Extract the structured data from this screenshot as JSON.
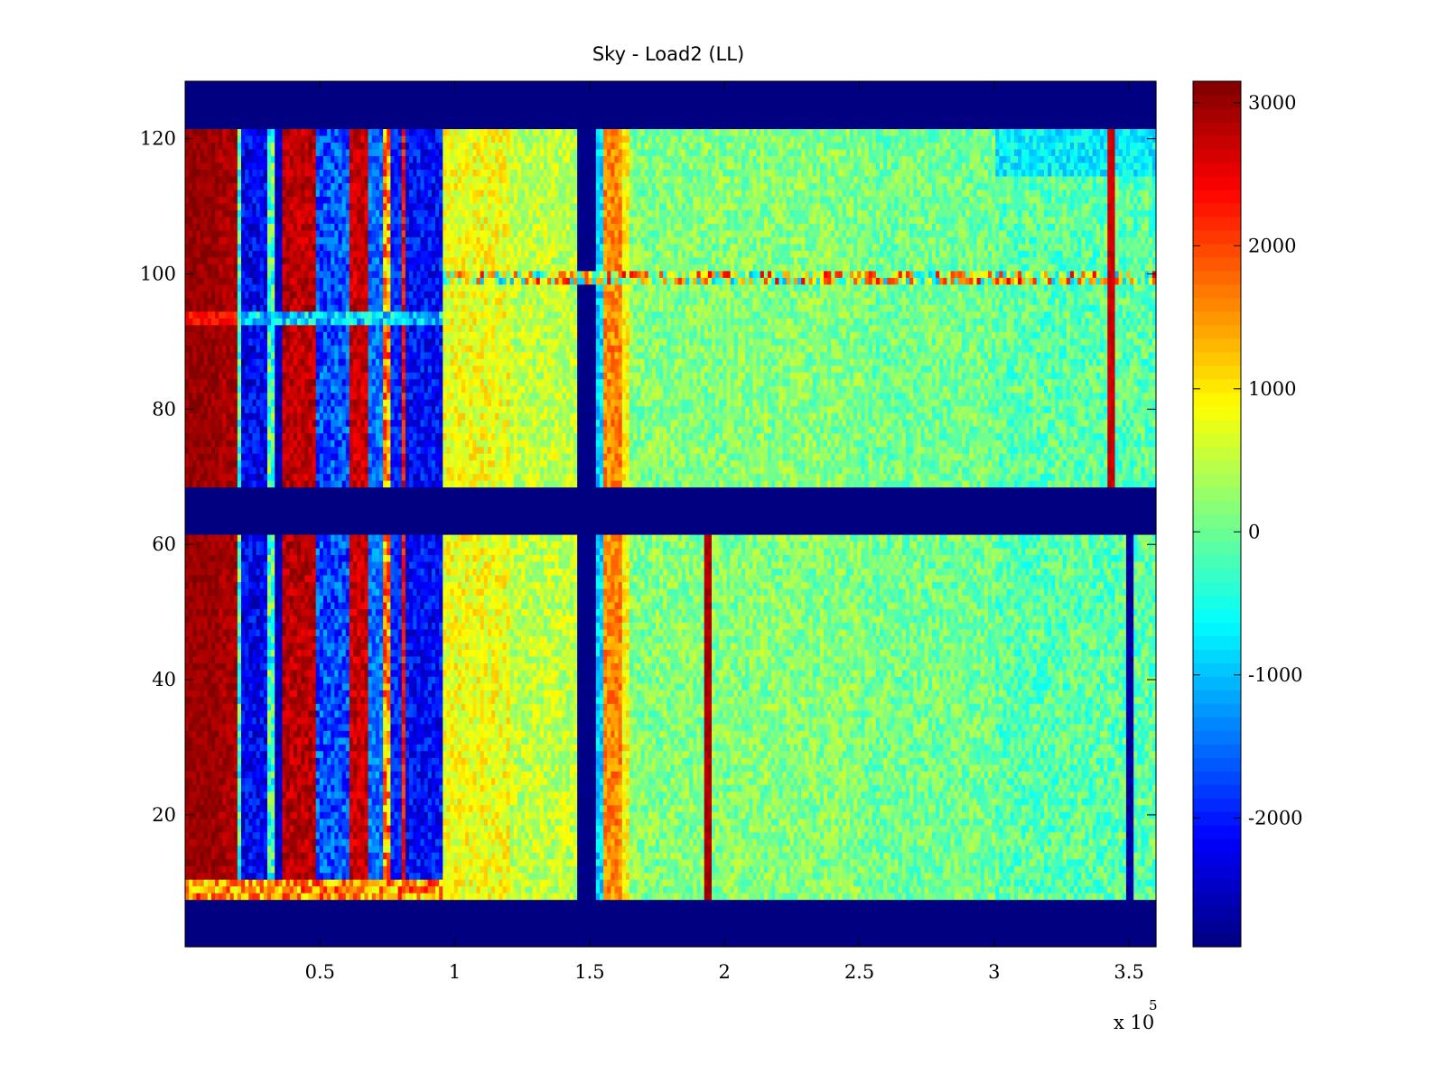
{
  "chart_data": {
    "type": "heatmap",
    "title": "Sky - Load2 (LL)",
    "xlabel": "",
    "ylabel": "",
    "x_range": [
      0,
      360000
    ],
    "y_range": [
      0.5,
      128.5
    ],
    "x_ticks": [
      0.5,
      1,
      1.5,
      2,
      2.5,
      3,
      3.5
    ],
    "x_tick_labels": [
      "0.5",
      "1",
      "1.5",
      "2",
      "2.5",
      "3",
      "3.5"
    ],
    "x_exponent_label": "x 10",
    "x_exponent_power": "5",
    "y_ticks": [
      20,
      40,
      60,
      80,
      100,
      120
    ],
    "y_tick_labels": [
      "20",
      "40",
      "60",
      "80",
      "100",
      "120"
    ],
    "colorbar": {
      "colormap": "jet",
      "clim": [
        -2900,
        3150
      ],
      "ticks": [
        3000,
        2000,
        1000,
        0,
        -1000,
        -2000
      ],
      "tick_labels": [
        "3000",
        "2000",
        "1000",
        "0",
        "-1000",
        "-2000"
      ]
    },
    "masked_rows": [
      [
        0.5,
        7.5
      ],
      [
        61.5,
        68.5
      ],
      [
        121.5,
        128.5
      ]
    ],
    "masked_value": -2900,
    "background_value": 100,
    "column_bands": [
      {
        "x0": 0.0,
        "x1": 0.12,
        "value": 3000,
        "jitter": 200
      },
      {
        "x0": 0.12,
        "x1": 0.13,
        "value": 2200,
        "jitter": 500
      },
      {
        "x0": 0.13,
        "x1": 0.19,
        "value": 2900,
        "jitter": 250
      },
      {
        "x0": 0.19,
        "x1": 0.21,
        "value": -300,
        "jitter": 700
      },
      {
        "x0": 0.21,
        "x1": 0.3,
        "value": -2200,
        "jitter": 500
      },
      {
        "x0": 0.3,
        "x1": 0.33,
        "value": -200,
        "jitter": 800
      },
      {
        "x0": 0.33,
        "x1": 0.36,
        "value": -2500,
        "jitter": 300
      },
      {
        "x0": 0.36,
        "x1": 0.49,
        "value": 2800,
        "jitter": 350
      },
      {
        "x0": 0.49,
        "x1": 0.61,
        "value": -1700,
        "jitter": 600
      },
      {
        "x0": 0.61,
        "x1": 0.68,
        "value": 2700,
        "jitter": 350
      },
      {
        "x0": 0.68,
        "x1": 0.73,
        "value": -1500,
        "jitter": 500
      },
      {
        "x0": 0.73,
        "x1": 0.76,
        "value": 1500,
        "jitter": 900
      },
      {
        "x0": 0.76,
        "x1": 0.8,
        "value": -1900,
        "jitter": 400
      },
      {
        "x0": 0.8,
        "x1": 0.82,
        "value": 2400,
        "jitter": 500
      },
      {
        "x0": 0.82,
        "x1": 0.95,
        "value": -2100,
        "jitter": 500
      },
      {
        "x0": 0.95,
        "x1": 1.2,
        "value": 800,
        "jitter": 450
      },
      {
        "x0": 1.2,
        "x1": 1.45,
        "value": 500,
        "jitter": 450
      },
      {
        "x0": 1.45,
        "x1": 1.53,
        "value": -2850,
        "jitter": 50
      },
      {
        "x0": 1.53,
        "x1": 1.55,
        "value": -900,
        "jitter": 400
      },
      {
        "x0": 1.55,
        "x1": 1.62,
        "value": 1600,
        "jitter": 400
      },
      {
        "x0": 1.62,
        "x1": 1.65,
        "value": 900,
        "jitter": 400
      },
      {
        "x0": 1.65,
        "x1": 2.5,
        "value": 150,
        "jitter": 450
      },
      {
        "x0": 2.5,
        "x1": 3.0,
        "value": 50,
        "jitter": 450
      },
      {
        "x0": 3.0,
        "x1": 3.6,
        "value": -100,
        "jitter": 500
      }
    ],
    "row_features": [
      {
        "y0": 98.5,
        "y1": 100.5,
        "x0": 0.95,
        "x1": 3.6,
        "value": 700,
        "jitter": 1800
      },
      {
        "y0": 92.5,
        "y1": 94.5,
        "x0": 0.0,
        "x1": 0.95,
        "value": -900,
        "jitter": 800
      },
      {
        "y0": 92.5,
        "y1": 94.5,
        "x0": 0.0,
        "x1": 0.2,
        "value": 2300,
        "jitter": 300
      },
      {
        "y0": 7.5,
        "y1": 10.5,
        "x0": 0.0,
        "x1": 0.95,
        "value": 1500,
        "jitter": 900
      },
      {
        "y0": 114.5,
        "y1": 121.5,
        "x0": 3.0,
        "x1": 3.6,
        "value": -700,
        "jitter": 400
      }
    ],
    "line_features": [
      {
        "x": 1.94,
        "y0": 7.5,
        "y1": 61.5,
        "value": 2900
      },
      {
        "x": 3.43,
        "y0": 68.5,
        "y1": 121.5,
        "value": 2700
      },
      {
        "x": 3.5,
        "y0": 7.5,
        "y1": 61.5,
        "value": -2700
      }
    ]
  }
}
